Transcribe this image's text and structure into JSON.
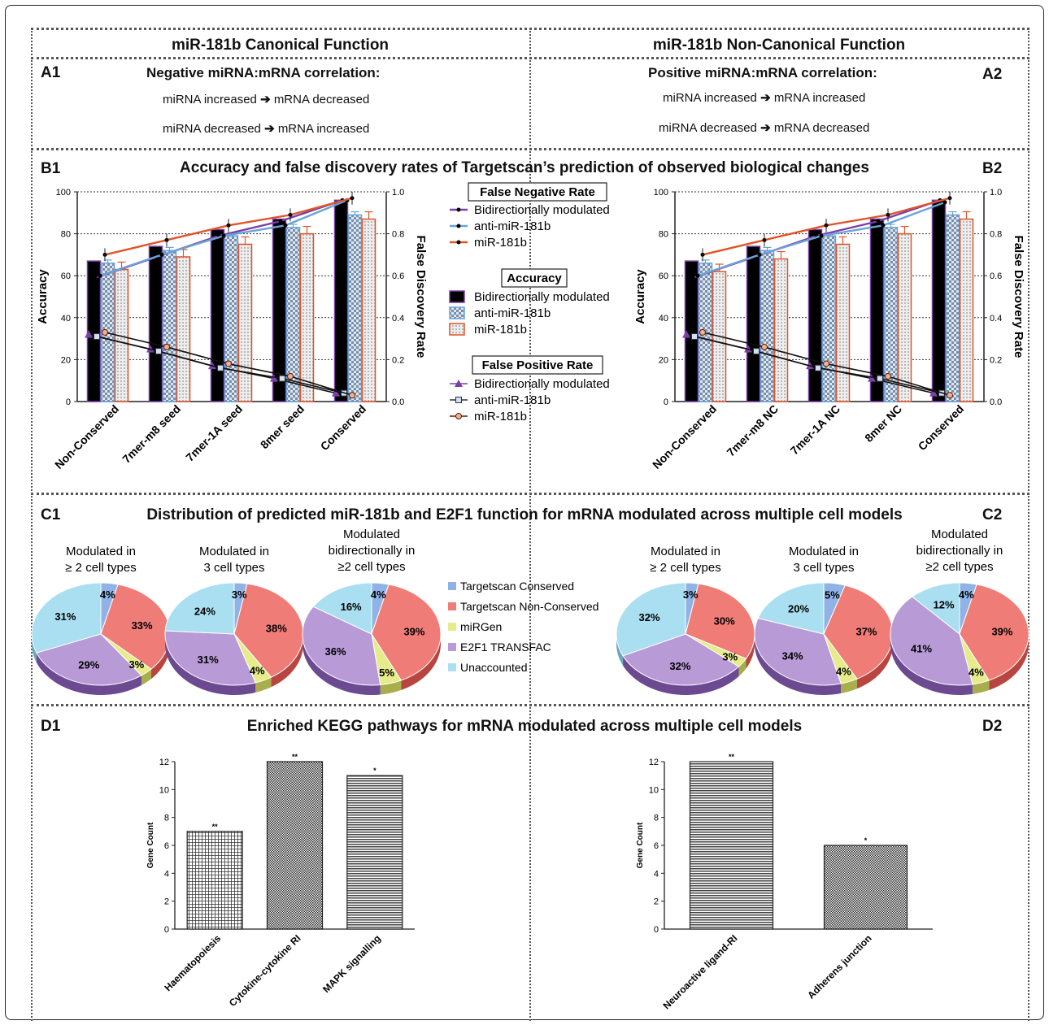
{
  "headers": {
    "left": "miR-181b Canonical Function",
    "right": "miR-181b Non-Canonical Function"
  },
  "sectionA": {
    "a1_label": "A1",
    "a2_label": "A2",
    "a1_title": "Negative miRNA:mRNA correlation:",
    "a2_title": "Positive miRNA:mRNA correlation:",
    "a1_line1_left": "miRNA increased",
    "a1_line1_right": "mRNA decreased",
    "a1_line2_left": "miRNA decreased",
    "a1_line2_right": "mRNA increased",
    "a2_line1_left": "miRNA increased",
    "a2_line1_right": "mRNA increased",
    "a2_line2_left": "miRNA decreased",
    "a2_line2_right": "mRNA decreased",
    "arrow": "➔"
  },
  "sectionB": {
    "b1_label": "B1",
    "b2_label": "B2",
    "title": "Accuracy and false discovery rates of Targetscan’s prediction of observed biological changes",
    "legend": {
      "fnr_title": "False Negative Rate",
      "acc_title": "Accuracy",
      "fpr_title": "False Positive Rate",
      "series": [
        "Bidirectionally modulated",
        "anti-miR-181b",
        "miR-181b"
      ]
    }
  },
  "sectionC": {
    "c1_label": "C1",
    "c2_label": "C2",
    "title": "Distribution of predicted miR-181b and E2F1 function for mRNA modulated across multiple cell models",
    "pie_titles": [
      [
        "Modulated in",
        "≥ 2 cell types"
      ],
      [
        "Modulated in",
        "3 cell types"
      ],
      [
        "Modulated",
        "bidirectionally in",
        "≥2 cell types"
      ],
      [
        "Modulated in",
        "≥ 2 cell types"
      ],
      [
        "Modulated in",
        "3 cell types"
      ],
      [
        "Modulated",
        "bidirectionally in",
        "≥2 cell types"
      ]
    ],
    "legend": [
      "Targetscan Conserved",
      "Targetscan Non-Conserved",
      "miRGen",
      "E2F1 TRANSFAC",
      "Unaccounted"
    ]
  },
  "sectionD": {
    "d1_label": "D1",
    "d2_label": "D2",
    "title": "Enriched KEGG pathways for mRNA modulated across multiple cell models"
  },
  "colors": {
    "purple": "#7b3fa8",
    "blue": "#6aa3d8",
    "orange": "#e0542a",
    "pie_conserved": "#8fb3e6",
    "pie_nonconserved": "#f07c78",
    "pie_mirgen": "#e6ec8a",
    "pie_e2f1": "#b79ad6",
    "pie_unaccounted": "#a9dff0"
  },
  "chart_data": [
    {
      "id": "B1",
      "type": "bar",
      "categories": [
        "Non-Conserved",
        "7mer-m8 seed",
        "7mer-1A seed",
        "8mer seed",
        "Conserved"
      ],
      "ylabel": "Accuracy",
      "y2label": "False Discovery Rate",
      "ylim": [
        0,
        100
      ],
      "y2lim": [
        0.0,
        1.0
      ],
      "yticks": [
        "0",
        "20",
        "40",
        "60",
        "80",
        "100"
      ],
      "y2ticks": [
        "0.0",
        "0.2",
        "0.4",
        "0.6",
        "0.8",
        "1.0"
      ],
      "accuracy_series": [
        {
          "name": "Bidirectionally modulated",
          "values": [
            67,
            74,
            82,
            87,
            96
          ]
        },
        {
          "name": "anti-miR-181b",
          "values": [
            66,
            72,
            79,
            83,
            89
          ]
        },
        {
          "name": "miR-181b",
          "values": [
            63,
            69,
            75,
            80,
            87
          ]
        }
      ],
      "fnr_series": [
        {
          "name": "Bidirectionally modulated",
          "values": [
            0.59,
            0.69,
            0.79,
            0.86,
            0.96
          ]
        },
        {
          "name": "anti-miR-181b",
          "values": [
            0.6,
            0.7,
            0.79,
            0.84,
            0.96
          ]
        },
        {
          "name": "miR-181b",
          "values": [
            0.7,
            0.77,
            0.84,
            0.89,
            0.97
          ]
        }
      ],
      "fpr_series": [
        {
          "name": "Bidirectionally modulated",
          "values": [
            0.32,
            0.25,
            0.17,
            0.11,
            0.04
          ]
        },
        {
          "name": "anti-miR-181b",
          "values": [
            0.31,
            0.24,
            0.16,
            0.11,
            0.04
          ]
        },
        {
          "name": "miR-181b",
          "values": [
            0.33,
            0.26,
            0.18,
            0.12,
            0.03
          ]
        }
      ]
    },
    {
      "id": "B2",
      "type": "bar",
      "categories": [
        "Non-Conserved",
        "7mer-m8 NC",
        "7mer-1A NC",
        "8mer NC",
        "Conserved"
      ],
      "ylabel": "Accuracy",
      "y2label": "False Discovery Rate",
      "ylim": [
        0,
        100
      ],
      "y2lim": [
        0.0,
        1.0
      ],
      "yticks": [
        "0",
        "20",
        "40",
        "60",
        "80",
        "100"
      ],
      "y2ticks": [
        "0.0",
        "0.2",
        "0.4",
        "0.6",
        "0.8",
        "1.0"
      ],
      "accuracy_series": [
        {
          "name": "Bidirectionally modulated",
          "values": [
            67,
            74,
            82,
            87,
            96
          ]
        },
        {
          "name": "anti-miR-181b",
          "values": [
            66,
            72,
            79,
            83,
            89
          ]
        },
        {
          "name": "miR-181b",
          "values": [
            62,
            68,
            75,
            80,
            87
          ]
        }
      ],
      "fnr_series": [
        {
          "name": "Bidirectionally modulated",
          "values": [
            0.59,
            0.69,
            0.79,
            0.86,
            0.96
          ]
        },
        {
          "name": "anti-miR-181b",
          "values": [
            0.6,
            0.7,
            0.79,
            0.84,
            0.95
          ]
        },
        {
          "name": "miR-181b",
          "values": [
            0.7,
            0.77,
            0.84,
            0.89,
            0.97
          ]
        }
      ],
      "fpr_series": [
        {
          "name": "Bidirectionally modulated",
          "values": [
            0.32,
            0.25,
            0.17,
            0.11,
            0.04
          ]
        },
        {
          "name": "anti-miR-181b",
          "values": [
            0.31,
            0.24,
            0.16,
            0.11,
            0.04
          ]
        },
        {
          "name": "miR-181b",
          "values": [
            0.33,
            0.26,
            0.18,
            0.12,
            0.03
          ]
        }
      ]
    },
    {
      "id": "C-pies",
      "type": "pie",
      "categories": [
        "Targetscan Conserved",
        "Targetscan Non-Conserved",
        "miRGen",
        "E2F1 TRANSFAC",
        "Unaccounted"
      ],
      "pies": [
        {
          "values": [
            4,
            33,
            3,
            29,
            31
          ],
          "labels": [
            "4%",
            "33%",
            "3%",
            "29%",
            "31%"
          ]
        },
        {
          "values": [
            3,
            38,
            4,
            31,
            24
          ],
          "labels": [
            "3%",
            "38%",
            "4%",
            "31%",
            "24%"
          ]
        },
        {
          "values": [
            4,
            39,
            5,
            36,
            16
          ],
          "labels": [
            "4%",
            "39%",
            "5%",
            "36%",
            "16%"
          ]
        },
        {
          "values": [
            3,
            30,
            3,
            32,
            32
          ],
          "labels": [
            "3%",
            "30%",
            "3%",
            "32%",
            "32%"
          ]
        },
        {
          "values": [
            5,
            37,
            4,
            34,
            20
          ],
          "labels": [
            "5%",
            "37%",
            "4%",
            "34%",
            "20%"
          ]
        },
        {
          "values": [
            4,
            39,
            4,
            41,
            12
          ],
          "labels": [
            "4%",
            "39%",
            "4%",
            "41%",
            "12%"
          ]
        }
      ]
    },
    {
      "id": "D1",
      "type": "bar",
      "categories": [
        "Haematopoiesis",
        "Cytokine-cytokine RI",
        "MAPK signalling"
      ],
      "values": [
        7,
        12,
        11
      ],
      "stars": [
        "**",
        "**",
        "*"
      ],
      "ylabel": "Gene Count",
      "ylim": [
        0,
        12
      ],
      "yticks": [
        "0",
        "2",
        "4",
        "6",
        "8",
        "10",
        "12"
      ]
    },
    {
      "id": "D2",
      "type": "bar",
      "categories": [
        "Neuroactive ligand-RI",
        "Adherens junction"
      ],
      "values": [
        12,
        6
      ],
      "stars": [
        "**",
        "*"
      ],
      "ylabel": "Gene Count",
      "ylim": [
        0,
        12
      ],
      "yticks": [
        "0",
        "2",
        "4",
        "6",
        "8",
        "10",
        "12"
      ]
    }
  ]
}
